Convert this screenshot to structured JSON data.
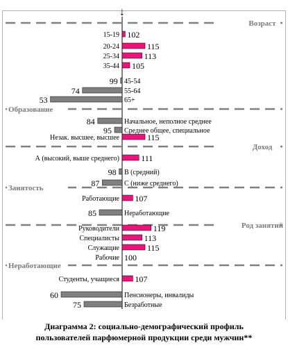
{
  "chart_data": {
    "type": "bar",
    "baseline": 100,
    "colors": {
      "above": "#e8157a",
      "below": "#808080",
      "frame": "#b0b0b0",
      "divider": "#808080"
    },
    "sections": [
      {
        "name": "Возраст",
        "rows": [
          {
            "label": "15-19",
            "value": 102
          },
          {
            "label": "20-24",
            "value": 115
          },
          {
            "label": "25-34",
            "value": 113
          },
          {
            "label": "35-44",
            "value": 105
          },
          {
            "label": "45-54",
            "value": 99
          },
          {
            "label": "55-64",
            "value": 74
          },
          {
            "label": "65+",
            "value": 53
          }
        ]
      },
      {
        "name": "Образование",
        "rows": [
          {
            "label": "Начальное, неполное среднее",
            "value": 84
          },
          {
            "label": "Среднее общее, специальное",
            "value": 95
          },
          {
            "label": "Незак. высшее, высшее",
            "value": 115
          }
        ]
      },
      {
        "name": "Доход",
        "rows": [
          {
            "label": "А (высокий, выше среднего)",
            "value": 111
          },
          {
            "label": "В (средний)",
            "value": 98
          },
          {
            "label": "С (ниже среднего)",
            "value": 87
          }
        ]
      },
      {
        "name": "Занятость",
        "rows": [
          {
            "label": "Работающие",
            "value": 107
          },
          {
            "label": "Неработающие",
            "value": 85
          }
        ]
      },
      {
        "name": "Род занятий",
        "rows": [
          {
            "label": "Руководители",
            "value": 119
          },
          {
            "label": "Специалисты",
            "value": 113
          },
          {
            "label": "Служащие",
            "value": 115
          },
          {
            "label": "Рабочие",
            "value": 100
          }
        ]
      },
      {
        "name": "Неработающие",
        "rows": [
          {
            "label": "Студенты, учащиеся",
            "value": 107
          },
          {
            "label": "Пенсионеры, инвалиды",
            "value": 60
          },
          {
            "label": "Безработные",
            "value": 75
          }
        ]
      }
    ]
  },
  "caption": {
    "line1": "Диаграмма 2: социально-демографический профиль",
    "line2": "пользователей парфюмерной продукции среди мужчин**"
  }
}
